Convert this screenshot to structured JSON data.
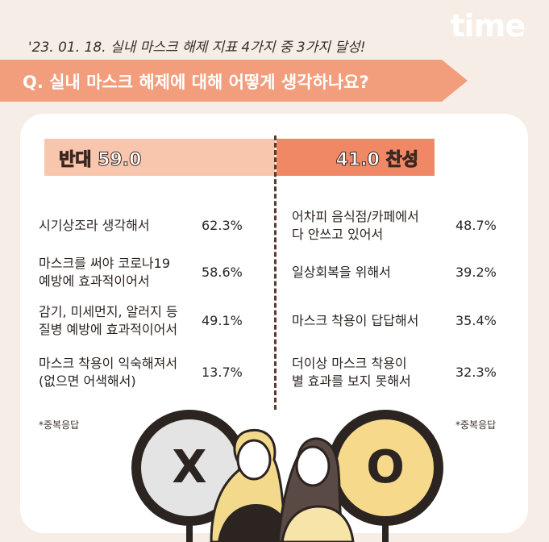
{
  "header": {
    "brand": "time",
    "dateline": "'23. 01. 18. 실내 마스크 해제 지표 4가지 중 3가지 달성!",
    "question": "Q. 실내 마스크 해제에 대해 어떻게 생각하나요?"
  },
  "against": {
    "label": "반대 59.0",
    "reasons": [
      {
        "text": "시기상조라 생각해서",
        "pct": "62.3%"
      },
      {
        "text": "마스크를 써야 코로나19\n예방에 효과적이어서",
        "pct": "58.6%"
      },
      {
        "text": "감기, 미세먼지, 알러지 등\n질병 예방에 효과적이어서",
        "pct": "49.1%"
      },
      {
        "text": "마스크 착용이 익숙해져서\n(없으면 어색해서)",
        "pct": "13.7%"
      }
    ],
    "note": "*중복응답",
    "symbol": "X"
  },
  "for": {
    "label": "41.0 찬성",
    "reasons": [
      {
        "text": "어차피 음식점/카페에서\n다 안쓰고 있어서",
        "pct": "48.7%"
      },
      {
        "text": "일상회복을 위해서",
        "pct": "39.2%"
      },
      {
        "text": "마스크 착용이 답답해서",
        "pct": "35.4%"
      },
      {
        "text": "더이상 마스크 착용이\n별 효과를 보지 못해서",
        "pct": "32.3%"
      }
    ],
    "note": "*중복응답",
    "symbol": "O"
  }
}
